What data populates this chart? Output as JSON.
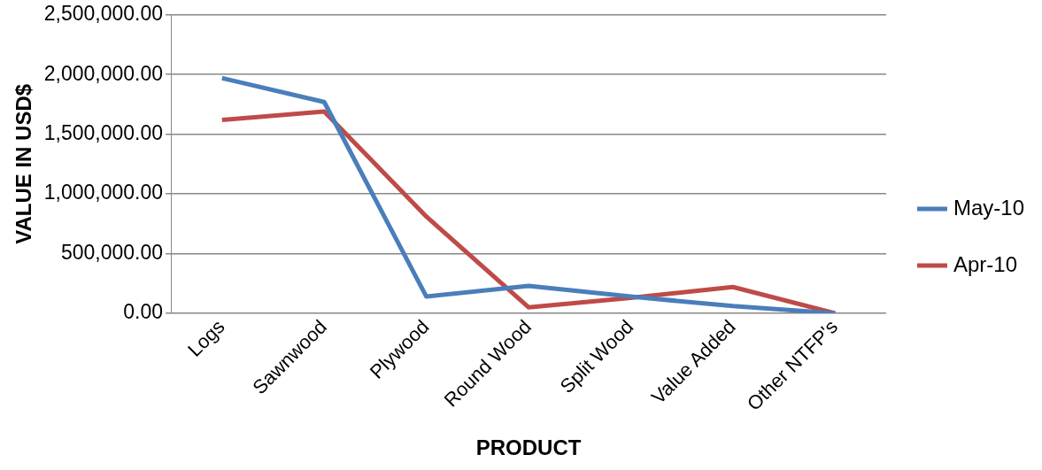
{
  "chart_data": {
    "type": "line",
    "xlabel": "PRODUCT",
    "ylabel": "VALUE IN USD$",
    "categories": [
      "Logs",
      "Sawnwood",
      "Plywood",
      "Round Wood",
      "Split Wood",
      "Value Added",
      "Other NTFP's"
    ],
    "series": [
      {
        "name": "May-10",
        "color": "#4a7ebb",
        "values": [
          1970000,
          1770000,
          140000,
          230000,
          140000,
          60000,
          0
        ]
      },
      {
        "name": "Apr-10",
        "color": "#be4b48",
        "values": [
          1620000,
          1690000,
          810000,
          50000,
          130000,
          220000,
          0
        ]
      }
    ],
    "ylim": [
      0,
      2500000
    ],
    "yticks": [
      {
        "value": 0,
        "label": "0.00"
      },
      {
        "value": 500000,
        "label": "500,000.00"
      },
      {
        "value": 1000000,
        "label": "1,000,000.00"
      },
      {
        "value": 1500000,
        "label": "1,500,000.00"
      },
      {
        "value": 2000000,
        "label": "2,000,000.00"
      },
      {
        "value": 2500000,
        "label": "2,500,000.00"
      }
    ],
    "grid": "y",
    "legend": "right",
    "marker": "none",
    "line_style": "solid"
  }
}
